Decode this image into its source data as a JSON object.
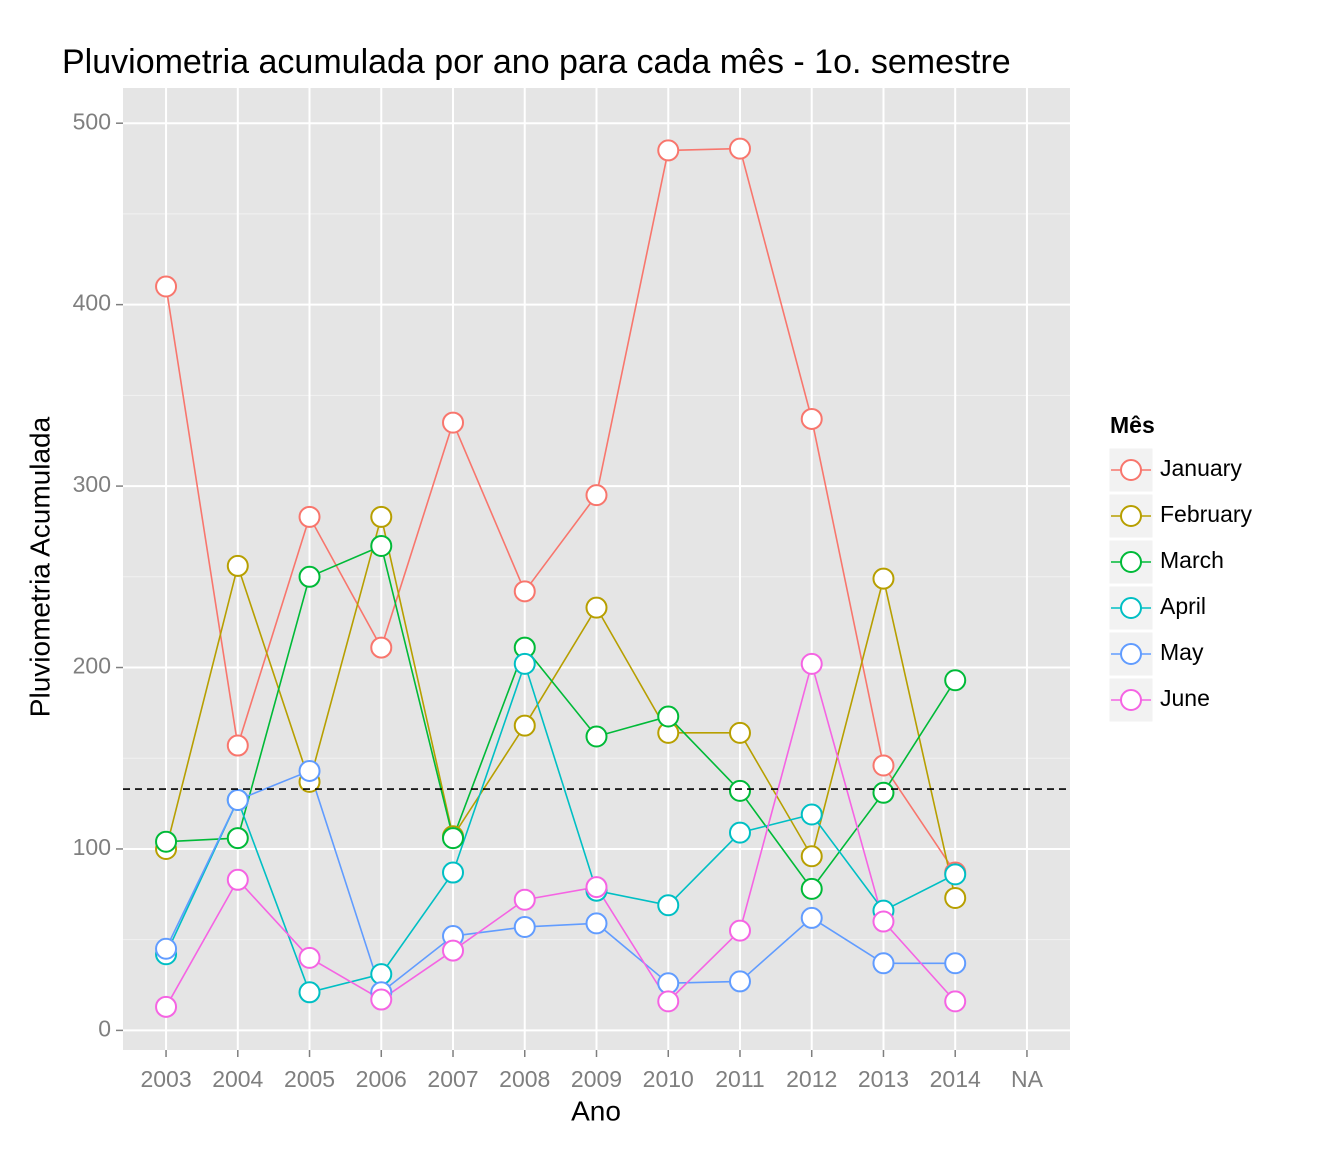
{
  "chart_data": {
    "type": "line",
    "title": "Pluviometria acumulada por ano para cada mês - 1o. semestre",
    "x_label": "Ano",
    "y_label": "Pluviometria Acumulada",
    "legend_title": "Mês",
    "categories": [
      "2003",
      "2004",
      "2005",
      "2006",
      "2007",
      "2008",
      "2009",
      "2010",
      "2011",
      "2012",
      "2013",
      "2014",
      "NA"
    ],
    "series": [
      {
        "name": "January",
        "color": "#F8766D",
        "values": [
          410,
          157,
          283,
          211,
          335,
          242,
          295,
          485,
          486,
          337,
          146,
          87,
          null
        ]
      },
      {
        "name": "February",
        "color": "#B79F00",
        "values": [
          100,
          256,
          137,
          283,
          107,
          168,
          233,
          164,
          164,
          96,
          249,
          73,
          null
        ]
      },
      {
        "name": "March",
        "color": "#00BA38",
        "values": [
          104,
          106,
          250,
          267,
          106,
          211,
          162,
          173,
          132,
          78,
          131,
          193,
          null
        ]
      },
      {
        "name": "April",
        "color": "#00BFC4",
        "values": [
          42,
          127,
          21,
          31,
          87,
          202,
          77,
          69,
          109,
          119,
          66,
          86,
          null
        ]
      },
      {
        "name": "May",
        "color": "#619CFF",
        "values": [
          45,
          127,
          143,
          21,
          52,
          57,
          59,
          26,
          27,
          62,
          37,
          37,
          null
        ]
      },
      {
        "name": "June",
        "color": "#F564E3",
        "values": [
          13,
          83,
          40,
          17,
          44,
          72,
          79,
          16,
          55,
          202,
          60,
          16,
          null
        ]
      }
    ],
    "hline": 133,
    "ylim": [
      -10.8,
      519.4
    ],
    "yticks": [
      0,
      100,
      200,
      300,
      400,
      500
    ],
    "grid": true
  }
}
